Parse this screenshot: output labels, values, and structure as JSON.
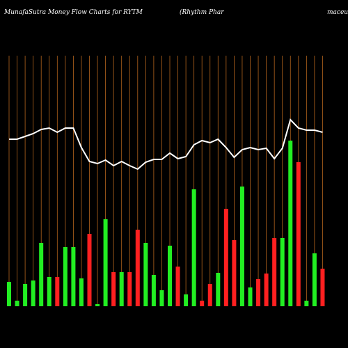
{
  "chart_data": {
    "type": "bar",
    "title": "MunafaSutra  Money Flow  Charts for RYTM",
    "subtitle": "(Rhythm Phar",
    "subtitle_end": "maceu",
    "categories": [
      null,
      null,
      null,
      null,
      null,
      null,
      null,
      null,
      null,
      null,
      null,
      null,
      null,
      null,
      null,
      null,
      null,
      null,
      null,
      null,
      null,
      null,
      null,
      null,
      null,
      null,
      null,
      null,
      null,
      null,
      null,
      null,
      null,
      null,
      null,
      null,
      null,
      null,
      null,
      null
    ],
    "values": [
      35,
      8,
      32,
      37,
      91,
      42,
      42,
      85,
      85,
      40,
      104,
      3,
      125,
      49,
      49,
      49,
      110,
      91,
      45,
      23,
      87,
      57,
      17,
      168,
      8,
      32,
      48,
      140,
      95,
      172,
      27,
      39,
      47,
      98,
      98,
      238,
      207,
      8,
      76,
      54
    ],
    "colors": [
      "#22ee22",
      "#22ee22",
      "#22ee22",
      "#22ee22",
      "#22ee22",
      "#22ee22",
      "#ff2020",
      "#22ee22",
      "#22ee22",
      "#22ee22",
      "#ff2020",
      "#22ee22",
      "#22ee22",
      "#ff2020",
      "#22ee22",
      "#ff2020",
      "#ff2020",
      "#22ee22",
      "#22ee22",
      "#22ee22",
      "#22ee22",
      "#ff2020",
      "#22ee22",
      "#22ee22",
      "#ff2020",
      "#ff2020",
      "#22ee22",
      "#ff2020",
      "#ff2020",
      "#22ee22",
      "#22ee22",
      "#ff2020",
      "#ff2020",
      "#ff2020",
      "#22ee22",
      "#22ee22",
      "#ff2020",
      "#22ee22",
      "#22ee22",
      "#ff2020"
    ],
    "line": {
      "color": "#ffffff",
      "values": [
        240,
        240,
        244,
        248,
        254,
        256,
        250,
        256,
        256,
        228,
        208,
        205,
        210,
        202,
        208,
        202,
        197,
        207,
        211,
        211,
        220,
        212,
        215,
        232,
        238,
        235,
        240,
        228,
        214,
        225,
        228,
        225,
        227,
        212,
        227,
        268,
        256,
        253,
        253,
        250
      ]
    },
    "ylim": [
      0,
      360
    ]
  }
}
